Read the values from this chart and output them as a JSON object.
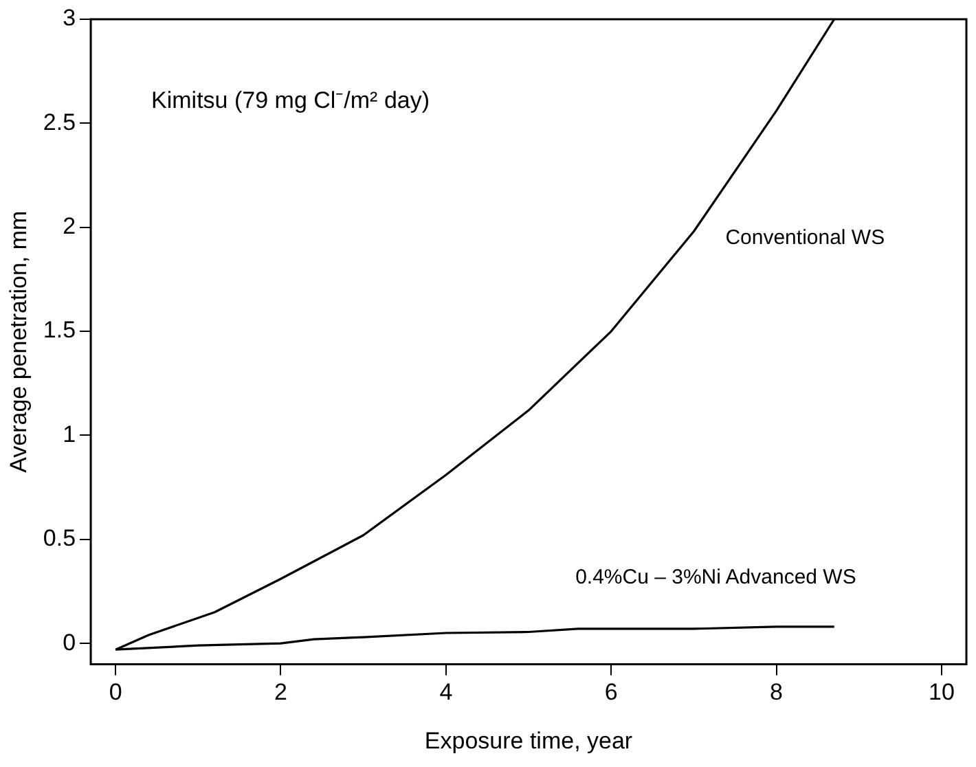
{
  "chart_data": {
    "type": "line",
    "xlabel": "Exposure time, year",
    "ylabel": "Average penetration, mm",
    "annotations": [
      "Kimitsu (79 mg Cl⁻/m² day)"
    ],
    "xlim": [
      -0.3,
      10.3
    ],
    "xticks": [
      0,
      2,
      4,
      6,
      8,
      10
    ],
    "ylim": [
      -0.1,
      3
    ],
    "yticks": [
      0,
      0.5,
      1,
      1.5,
      2,
      2.5,
      3
    ],
    "grid": false,
    "legend": false,
    "marker": "none",
    "line_style": "solid",
    "series": [
      {
        "name": "Conventional WS",
        "color": "#000000",
        "x": [
          0,
          0.4,
          1.2,
          2,
          3,
          4,
          5,
          6,
          7,
          8,
          8.7
        ],
        "values": [
          -0.03,
          0.04,
          0.15,
          0.31,
          0.52,
          0.81,
          1.12,
          1.5,
          1.98,
          2.56,
          3.0
        ]
      },
      {
        "name": "0.4%Cu – 3%Ni Advanced WS",
        "color": "#000000",
        "x": [
          0,
          1,
          2,
          2.4,
          3,
          4,
          5,
          5.6,
          7,
          8,
          8.7
        ],
        "values": [
          -0.03,
          -0.01,
          0.0,
          0.02,
          0.03,
          0.05,
          0.055,
          0.07,
          0.07,
          0.08,
          0.08
        ]
      }
    ]
  }
}
